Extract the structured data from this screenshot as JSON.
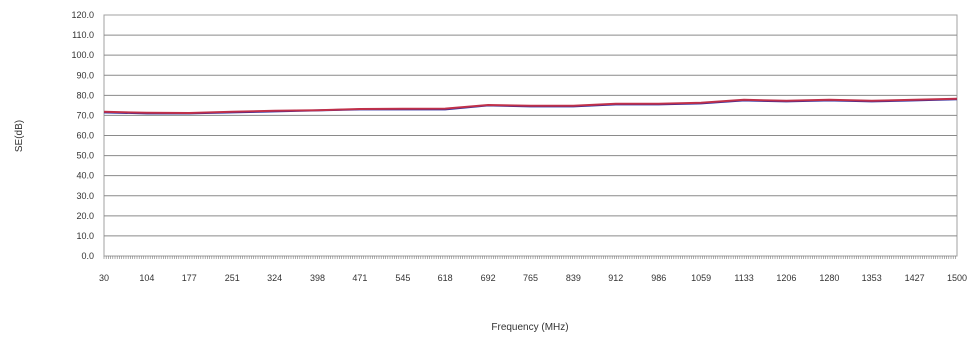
{
  "chart_data": {
    "type": "line",
    "title": "",
    "xlabel": "Frequency (MHz)",
    "ylabel": "SE(dB)",
    "xlim": [
      30,
      1500
    ],
    "ylim": [
      0,
      120
    ],
    "x_ticks": [
      "30",
      "104",
      "177",
      "251",
      "324",
      "398",
      "471",
      "545",
      "618",
      "692",
      "765",
      "839",
      "912",
      "986",
      "1059",
      "1133",
      "1206",
      "1280",
      "1353",
      "1427",
      "1500"
    ],
    "y_ticks": [
      "0.0",
      "10.0",
      "20.0",
      "30.0",
      "40.0",
      "50.0",
      "60.0",
      "70.0",
      "80.0",
      "90.0",
      "100.0",
      "110.0",
      "120.0"
    ],
    "grid": "horizontal",
    "legend": "none",
    "series": [
      {
        "color": "#2a2aa0",
        "x": [
          30,
          104,
          177,
          251,
          324,
          398,
          471,
          545,
          618,
          692,
          765,
          839,
          912,
          986,
          1059,
          1133,
          1206,
          1280,
          1353,
          1427,
          1500
        ],
        "values": [
          71.5,
          71.0,
          71.0,
          71.5,
          72.0,
          72.5,
          73.0,
          73.0,
          73.0,
          75.0,
          74.5,
          74.5,
          75.5,
          75.5,
          76.0,
          77.5,
          77.0,
          77.5,
          77.0,
          77.5,
          78.0
        ]
      },
      {
        "color": "#c0304a",
        "x": [
          30,
          104,
          177,
          251,
          324,
          398,
          471,
          545,
          618,
          692,
          765,
          839,
          912,
          986,
          1059,
          1133,
          1206,
          1280,
          1353,
          1427,
          1500
        ],
        "values": [
          71.8,
          71.3,
          71.2,
          71.8,
          72.3,
          72.6,
          73.2,
          73.3,
          73.4,
          75.2,
          74.8,
          74.8,
          75.8,
          75.8,
          76.3,
          77.8,
          77.3,
          77.8,
          77.3,
          77.8,
          78.3
        ]
      }
    ]
  }
}
